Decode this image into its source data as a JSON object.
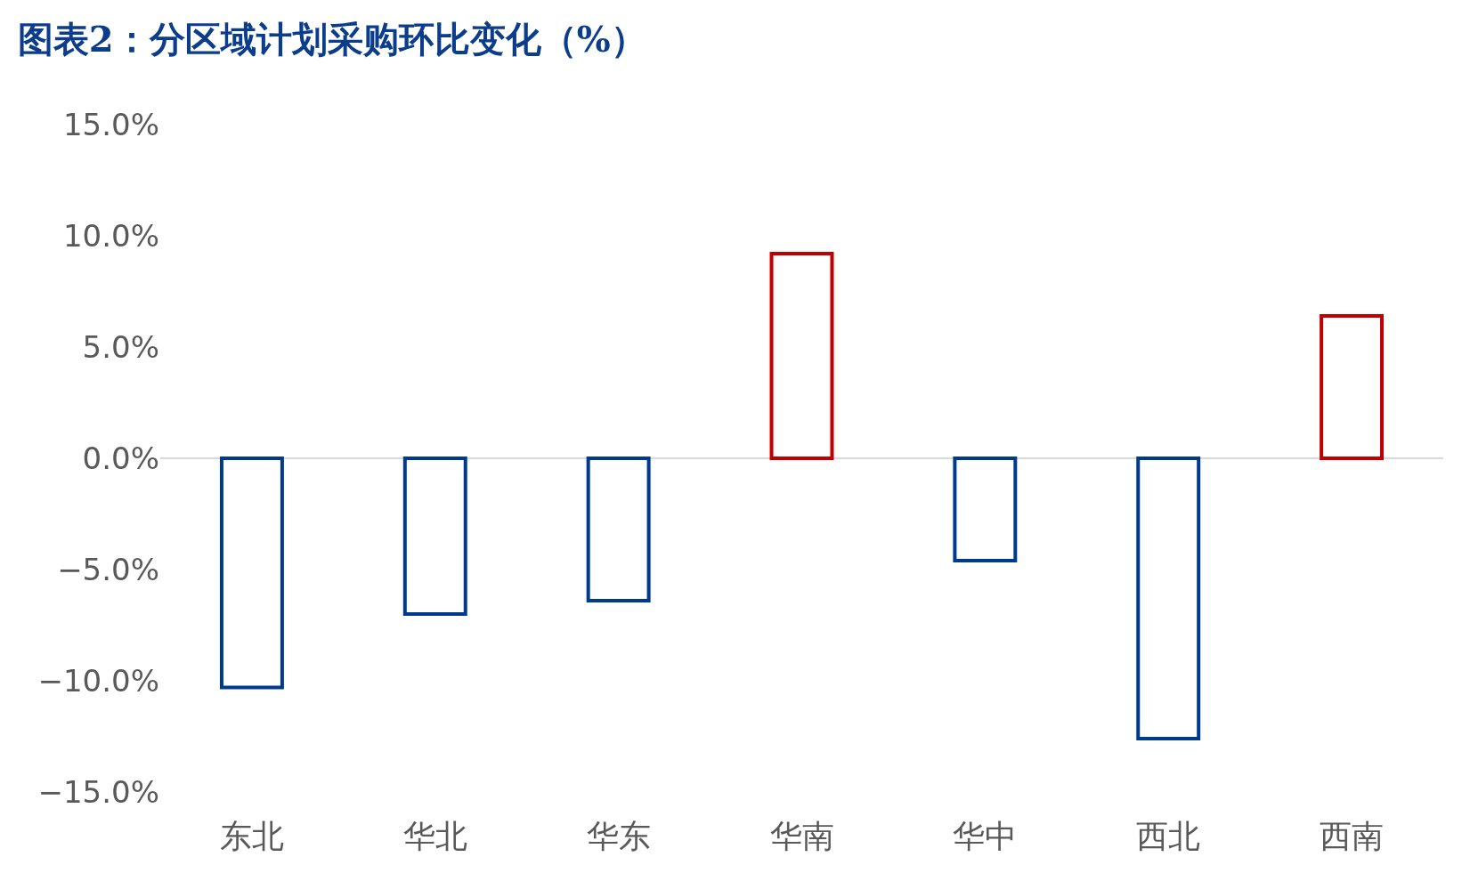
{
  "chart_data": {
    "type": "bar",
    "title": "图表2：分区域计划采购环比变化（%）",
    "categories": [
      "东北",
      "华北",
      "华东",
      "华南",
      "华中",
      "西北",
      "西南"
    ],
    "values": [
      -10.3,
      -7.0,
      -6.4,
      9.2,
      -4.6,
      -12.6,
      6.4
    ],
    "colors": [
      "#003a8c",
      "#003a8c",
      "#003a8c",
      "#c00000",
      "#003a8c",
      "#003a8c",
      "#c00000"
    ],
    "ylim": [
      -15,
      15
    ],
    "yticks": [
      {
        "value": 15,
        "label": "15.0%"
      },
      {
        "value": 10,
        "label": "10.0%"
      },
      {
        "value": 5,
        "label": "5.0%"
      },
      {
        "value": 0,
        "label": "0.0%"
      },
      {
        "value": -5,
        "label": "−5.0%"
      },
      {
        "value": -10,
        "label": "−10.0%"
      },
      {
        "value": -15,
        "label": "−15.0%"
      }
    ],
    "ref_lines": [
      {
        "axis": "y",
        "value": 0,
        "color": "#d9d9d9"
      }
    ]
  }
}
